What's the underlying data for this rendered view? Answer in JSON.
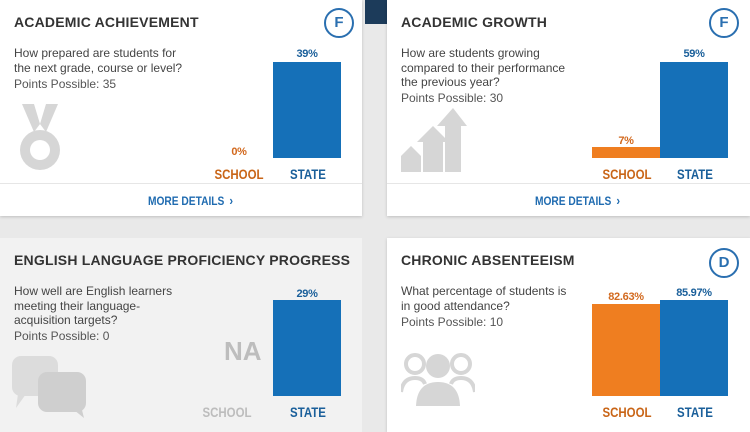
{
  "cards": {
    "achievement": {
      "title": "ACADEMIC ACHIEVEMENT",
      "grade": "F",
      "question": "How prepared are students for the next grade, course or level?",
      "points": "Points Possible: 35",
      "school_value": 0,
      "state_value": 39,
      "school_pct": "0%",
      "state_pct": "39%",
      "school_label": "SCHOOL",
      "state_label": "STATE",
      "more": "MORE DETAILS",
      "icon": "medal-icon"
    },
    "growth": {
      "title": "ACADEMIC GROWTH",
      "grade": "F",
      "question": "How are students growing compared to their performance the previous year?",
      "points": "Points Possible: 30",
      "school_value": 7,
      "state_value": 59,
      "school_pct": "7%",
      "state_pct": "59%",
      "school_label": "SCHOOL",
      "state_label": "STATE",
      "more": "MORE DETAILS",
      "icon": "growth-arrows-icon"
    },
    "english": {
      "title": "ENGLISH LANGUAGE PROFICIENCY PROGRESS",
      "question": "How well are English learners meeting their language-acquisition targets?",
      "points": "Points Possible: 0",
      "school_text": "NA",
      "state_value": 29,
      "state_pct": "29%",
      "school_label": "SCHOOL",
      "state_label": "STATE",
      "icon": "speech-bubbles-icon"
    },
    "absenteeism": {
      "title": "CHRONIC ABSENTEEISM",
      "grade": "D",
      "question": "What percentage of students is in good attendance?",
      "points": "Points Possible: 10",
      "school_value": 82.63,
      "state_value": 85.97,
      "school_pct": "82.63%",
      "state_pct": "85.97%",
      "school_label": "SCHOOL",
      "state_label": "STATE",
      "icon": "people-icon"
    }
  },
  "colors": {
    "state": "#1570b8",
    "school": "#ef7e20",
    "grade": "#2a6fb0"
  }
}
